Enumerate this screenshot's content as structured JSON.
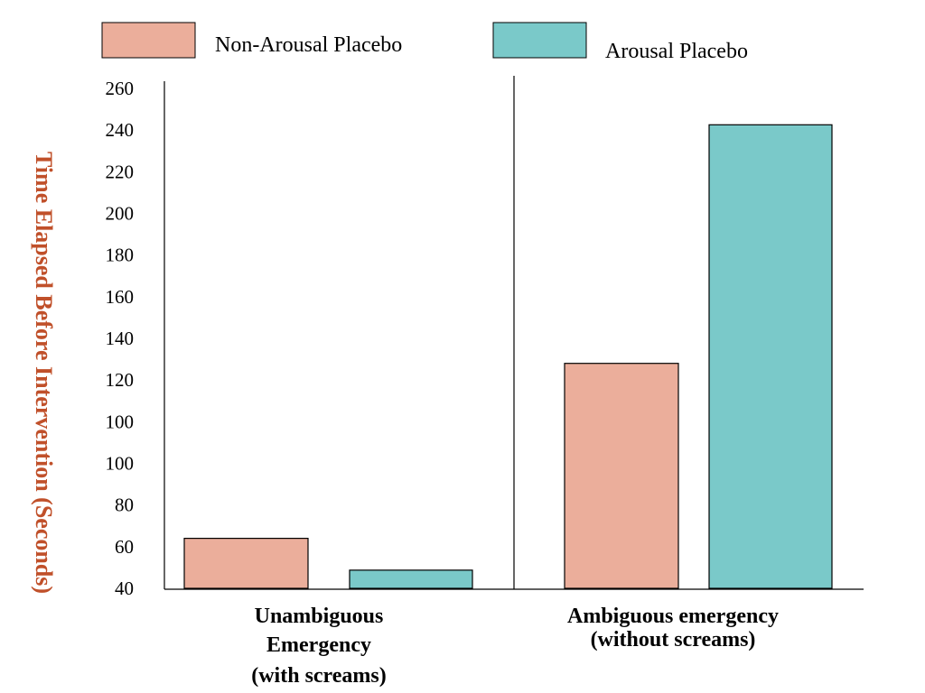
{
  "chart_data": {
    "type": "bar",
    "title": "",
    "ylabel": "Time Elapsed Before Intervention (Seconds)",
    "xlabel": "",
    "y_tick_labels": [
      "40",
      "60",
      "80",
      "100",
      "100",
      "120",
      "140",
      "160",
      "180",
      "200",
      "220",
      "240",
      "260"
    ],
    "ylim": [
      40,
      260
    ],
    "grid": false,
    "legend_position": "top",
    "categories": [
      {
        "lines": [
          "Unambiguous",
          "Emergency",
          "(with screams)"
        ]
      },
      {
        "lines": [
          "Ambiguous emergency",
          "(without screams)"
        ]
      }
    ],
    "series": [
      {
        "name": "Non-Arousal Placebo",
        "color": "#ebae9b",
        "values": [
          62,
          139
        ]
      },
      {
        "name": "Arousal Placebo",
        "color": "#7ac9c9",
        "values": [
          48,
          244
        ]
      }
    ],
    "colors": {
      "ylabel": "#c0502a",
      "axis": "#000000",
      "bar_edge": "#000000"
    }
  }
}
